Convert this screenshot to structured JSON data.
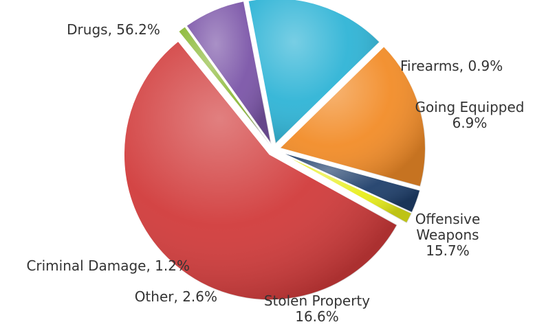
{
  "chart_data": {
    "type": "pie",
    "title": "",
    "slices": [
      {
        "name": "Drugs",
        "value": 56.2,
        "color": "#D13B3B",
        "label_lines": [
          "Drugs, 56.2%"
        ]
      },
      {
        "name": "Firearms",
        "value": 0.9,
        "color": "#8DBA3A",
        "label_lines": [
          "Firearms, 0.9%"
        ]
      },
      {
        "name": "Going Equipped",
        "value": 6.9,
        "color": "#7B55A8",
        "label_lines": [
          "Going Equipped",
          "6.9%"
        ]
      },
      {
        "name": "Offensive Weapons",
        "value": 15.7,
        "color": "#2FB4D6",
        "label_lines": [
          "Offensive",
          "Weapons",
          "15.7%"
        ]
      },
      {
        "name": "Stolen Property",
        "value": 16.6,
        "color": "#F28C28",
        "label_lines": [
          "Stolen Property",
          "16.6%"
        ]
      },
      {
        "name": "Other",
        "value": 2.6,
        "color": "#1F3F6B",
        "label_lines": [
          "Other, 2.6%"
        ]
      },
      {
        "name": "Criminal Damage",
        "value": 1.2,
        "color": "#E8EE1A",
        "label_lines": [
          "Criminal Damage, 1.2%"
        ]
      }
    ]
  }
}
